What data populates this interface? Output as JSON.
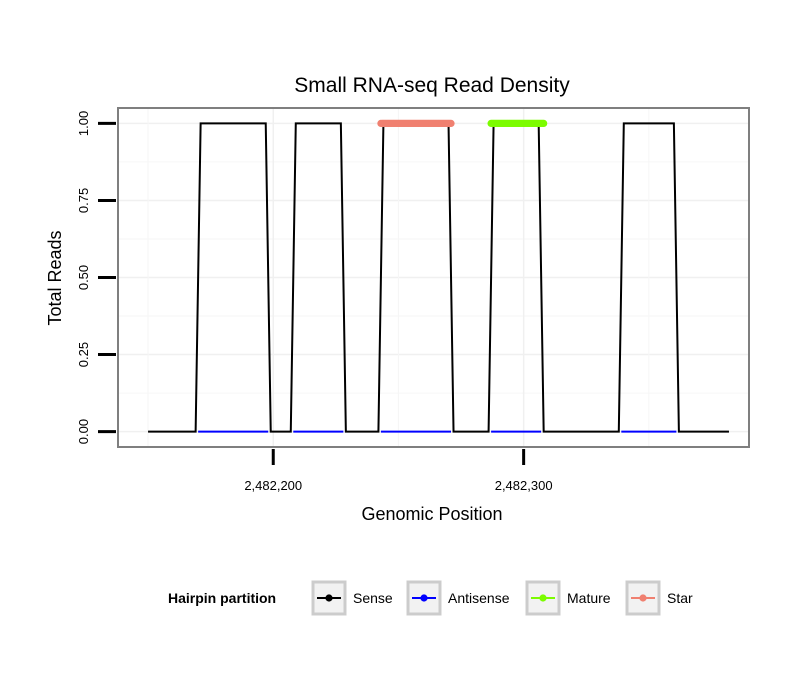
{
  "chart_data": {
    "type": "line",
    "title": "Small RNA-seq Read Density",
    "xlabel": "Genomic Position",
    "ylabel": "Total Reads",
    "xlim": [
      2482138,
      2482390
    ],
    "ylim": [
      -0.05,
      1.05
    ],
    "x_ticks": [
      {
        "value": 2482200,
        "label": "2,482,200"
      },
      {
        "value": 2482300,
        "label": "2,482,300"
      }
    ],
    "y_ticks": [
      {
        "value": 0.0,
        "label": "0.00"
      },
      {
        "value": 0.25,
        "label": "0.25"
      },
      {
        "value": 0.5,
        "label": "0.50"
      },
      {
        "value": 0.75,
        "label": "0.75"
      },
      {
        "value": 1.0,
        "label": "1.00"
      }
    ],
    "grid": true,
    "legend_position": "bottom",
    "legend_title": "Hairpin partition",
    "series": [
      {
        "name": "Sense",
        "color": "#000000",
        "x": [
          2482150,
          2482169,
          2482171,
          2482197,
          2482199,
          2482207,
          2482209,
          2482227,
          2482229,
          2482242,
          2482244,
          2482270,
          2482272,
          2482286,
          2482288,
          2482306,
          2482308,
          2482338,
          2482340,
          2482360,
          2482362,
          2482382
        ],
        "y": [
          0,
          0,
          1,
          1,
          0,
          0,
          1,
          1,
          0,
          0,
          1,
          1,
          0,
          0,
          1,
          1,
          0,
          0,
          1,
          1,
          0,
          0
        ]
      },
      {
        "name": "Antisense",
        "color": "#0000ff",
        "x": [
          2482170,
          2482198,
          2482208,
          2482228,
          2482243,
          2482271,
          2482287,
          2482307,
          2482339,
          2482361
        ],
        "y": [
          0,
          0,
          null,
          null,
          0,
          0,
          0,
          0,
          0,
          0
        ],
        "segments": [
          {
            "x": [
              2482170,
              2482198
            ],
            "y": [
              0,
              0
            ]
          },
          {
            "x": [
              2482208,
              2482228
            ],
            "y": [
              0,
              0
            ]
          },
          {
            "x": [
              2482243,
              2482271
            ],
            "y": [
              0,
              0
            ]
          },
          {
            "x": [
              2482287,
              2482307
            ],
            "y": [
              0,
              0
            ]
          },
          {
            "x": [
              2482339,
              2482361
            ],
            "y": [
              0,
              0
            ]
          }
        ]
      },
      {
        "name": "Mature",
        "color": "#7cfc00",
        "x": [
          2482287,
          2482287.5,
          2482288,
          2482288.5,
          2482289,
          2482289.5,
          2482290,
          2482290.5,
          2482291,
          2482291.5,
          2482292,
          2482292.5,
          2482293,
          2482293.5,
          2482294,
          2482294.5,
          2482295,
          2482295.5,
          2482296,
          2482296.5,
          2482297,
          2482297.5,
          2482298,
          2482298.5,
          2482299,
          2482299.5,
          2482300,
          2482300.5,
          2482301,
          2482301.5,
          2482302,
          2482302.5,
          2482303,
          2482303.5,
          2482304,
          2482304.5,
          2482305,
          2482305.5,
          2482306,
          2482306.5,
          2482307,
          2482307.5,
          2482308
        ],
        "y": [
          1,
          1,
          1,
          1,
          1,
          1,
          1,
          1,
          1,
          1,
          1,
          1,
          1,
          1,
          1,
          1,
          1,
          1,
          1,
          1,
          1,
          1,
          1,
          1,
          1,
          1,
          1,
          1,
          1,
          1,
          1,
          1,
          1,
          1,
          1,
          1,
          1,
          1,
          1,
          1,
          1,
          1,
          1
        ]
      },
      {
        "name": "Star",
        "color": "#f08070",
        "x": [
          2482243,
          2482243.5,
          2482244,
          2482244.5,
          2482245,
          2482245.5,
          2482246,
          2482246.5,
          2482247,
          2482247.5,
          2482248,
          2482248.5,
          2482249,
          2482249.5,
          2482250,
          2482250.5,
          2482251,
          2482251.5,
          2482252,
          2482252.5,
          2482253,
          2482253.5,
          2482254,
          2482254.5,
          2482255,
          2482255.5,
          2482256,
          2482256.5,
          2482257,
          2482257.5,
          2482258,
          2482258.5,
          2482259,
          2482259.5,
          2482260,
          2482260.5,
          2482261,
          2482261.5,
          2482262,
          2482262.5,
          2482263,
          2482263.5,
          2482264,
          2482264.5,
          2482265,
          2482265.5,
          2482266,
          2482266.5,
          2482267,
          2482267.5,
          2482268,
          2482268.5,
          2482269,
          2482269.5,
          2482270,
          2482270.5,
          2482271
        ],
        "y": [
          1,
          1,
          1,
          1,
          1,
          1,
          1,
          1,
          1,
          1,
          1,
          1,
          1,
          1,
          1,
          1,
          1,
          1,
          1,
          1,
          1,
          1,
          1,
          1,
          1,
          1,
          1,
          1,
          1,
          1,
          1,
          1,
          1,
          1,
          1,
          1,
          1,
          1,
          1,
          1,
          1,
          1,
          1,
          1,
          1,
          1,
          1,
          1,
          1,
          1,
          1,
          1,
          1,
          1,
          1,
          1,
          1
        ]
      }
    ]
  }
}
